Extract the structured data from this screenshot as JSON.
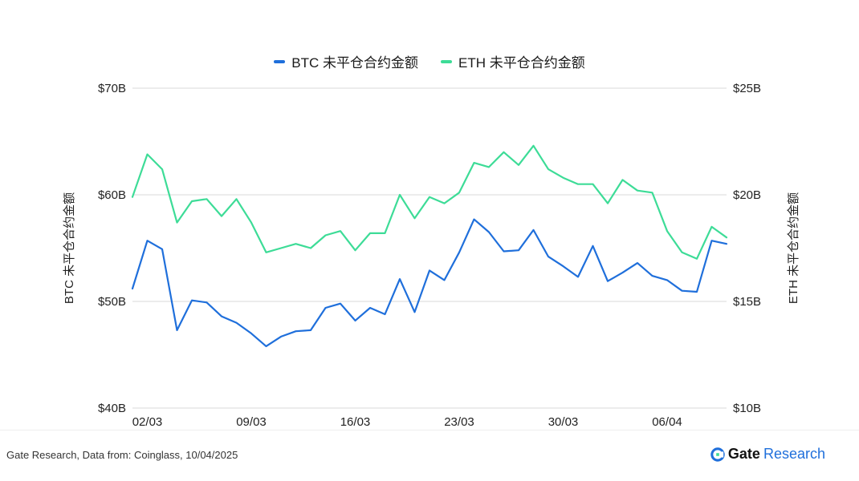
{
  "chart_data": {
    "type": "line",
    "categories": [
      "01/03",
      "02/03",
      "03/03",
      "04/03",
      "05/03",
      "06/03",
      "07/03",
      "08/03",
      "09/03",
      "10/03",
      "11/03",
      "12/03",
      "13/03",
      "14/03",
      "15/03",
      "16/03",
      "17/03",
      "18/03",
      "19/03",
      "20/03",
      "21/03",
      "22/03",
      "23/03",
      "24/03",
      "25/03",
      "26/03",
      "27/03",
      "28/03",
      "29/03",
      "30/03",
      "31/03",
      "01/04",
      "02/04",
      "03/04",
      "04/04",
      "05/04",
      "06/04",
      "07/04",
      "08/04",
      "09/04",
      "10/04"
    ],
    "x_ticks": [
      "02/03",
      "09/03",
      "16/03",
      "23/03",
      "30/03",
      "06/04"
    ],
    "series": [
      {
        "name": "BTC 未平仓合约金额",
        "axis": "left",
        "color": "#1f6fdb",
        "values": [
          51.2,
          55.7,
          54.9,
          47.3,
          50.1,
          49.9,
          48.6,
          48.0,
          47.0,
          45.8,
          46.7,
          47.2,
          47.3,
          49.4,
          49.8,
          48.2,
          49.4,
          48.8,
          52.1,
          49.0,
          52.9,
          52.0,
          54.6,
          57.7,
          56.5,
          54.7,
          54.8,
          56.7,
          54.2,
          53.3,
          52.3,
          55.2,
          51.9,
          52.7,
          53.6,
          52.4,
          52.0,
          51.0,
          50.9,
          55.7,
          55.4
        ]
      },
      {
        "name": "ETH 未平仓合约金额",
        "axis": "right",
        "color": "#3ddc97",
        "values": [
          19.9,
          21.9,
          21.2,
          18.7,
          19.7,
          19.8,
          19.0,
          19.8,
          18.7,
          17.3,
          17.5,
          17.7,
          17.5,
          18.1,
          18.3,
          17.4,
          18.2,
          18.2,
          20.0,
          18.9,
          19.9,
          19.6,
          20.1,
          21.5,
          21.3,
          22.0,
          21.4,
          22.3,
          21.2,
          20.8,
          20.5,
          20.5,
          19.6,
          20.7,
          20.2,
          20.1,
          18.3,
          17.3,
          17.0,
          18.5,
          18.0
        ]
      }
    ],
    "left_axis": {
      "label": "BTC 未平仓合约金额",
      "ylim": [
        40,
        70
      ],
      "ticks": [
        "$40B",
        "$50B",
        "$60B",
        "$70B"
      ]
    },
    "right_axis": {
      "label": "ETH 未平仓合约金额",
      "ylim": [
        10,
        25
      ],
      "ticks": [
        "$10B",
        "$15B",
        "$20B",
        "$25B"
      ]
    },
    "grid": true,
    "legend": "top-center"
  },
  "footer": {
    "source": "Gate Research, Data from: Coinglass, 10/04/2025",
    "brand_gate": "Gate",
    "brand_research": "Research"
  }
}
